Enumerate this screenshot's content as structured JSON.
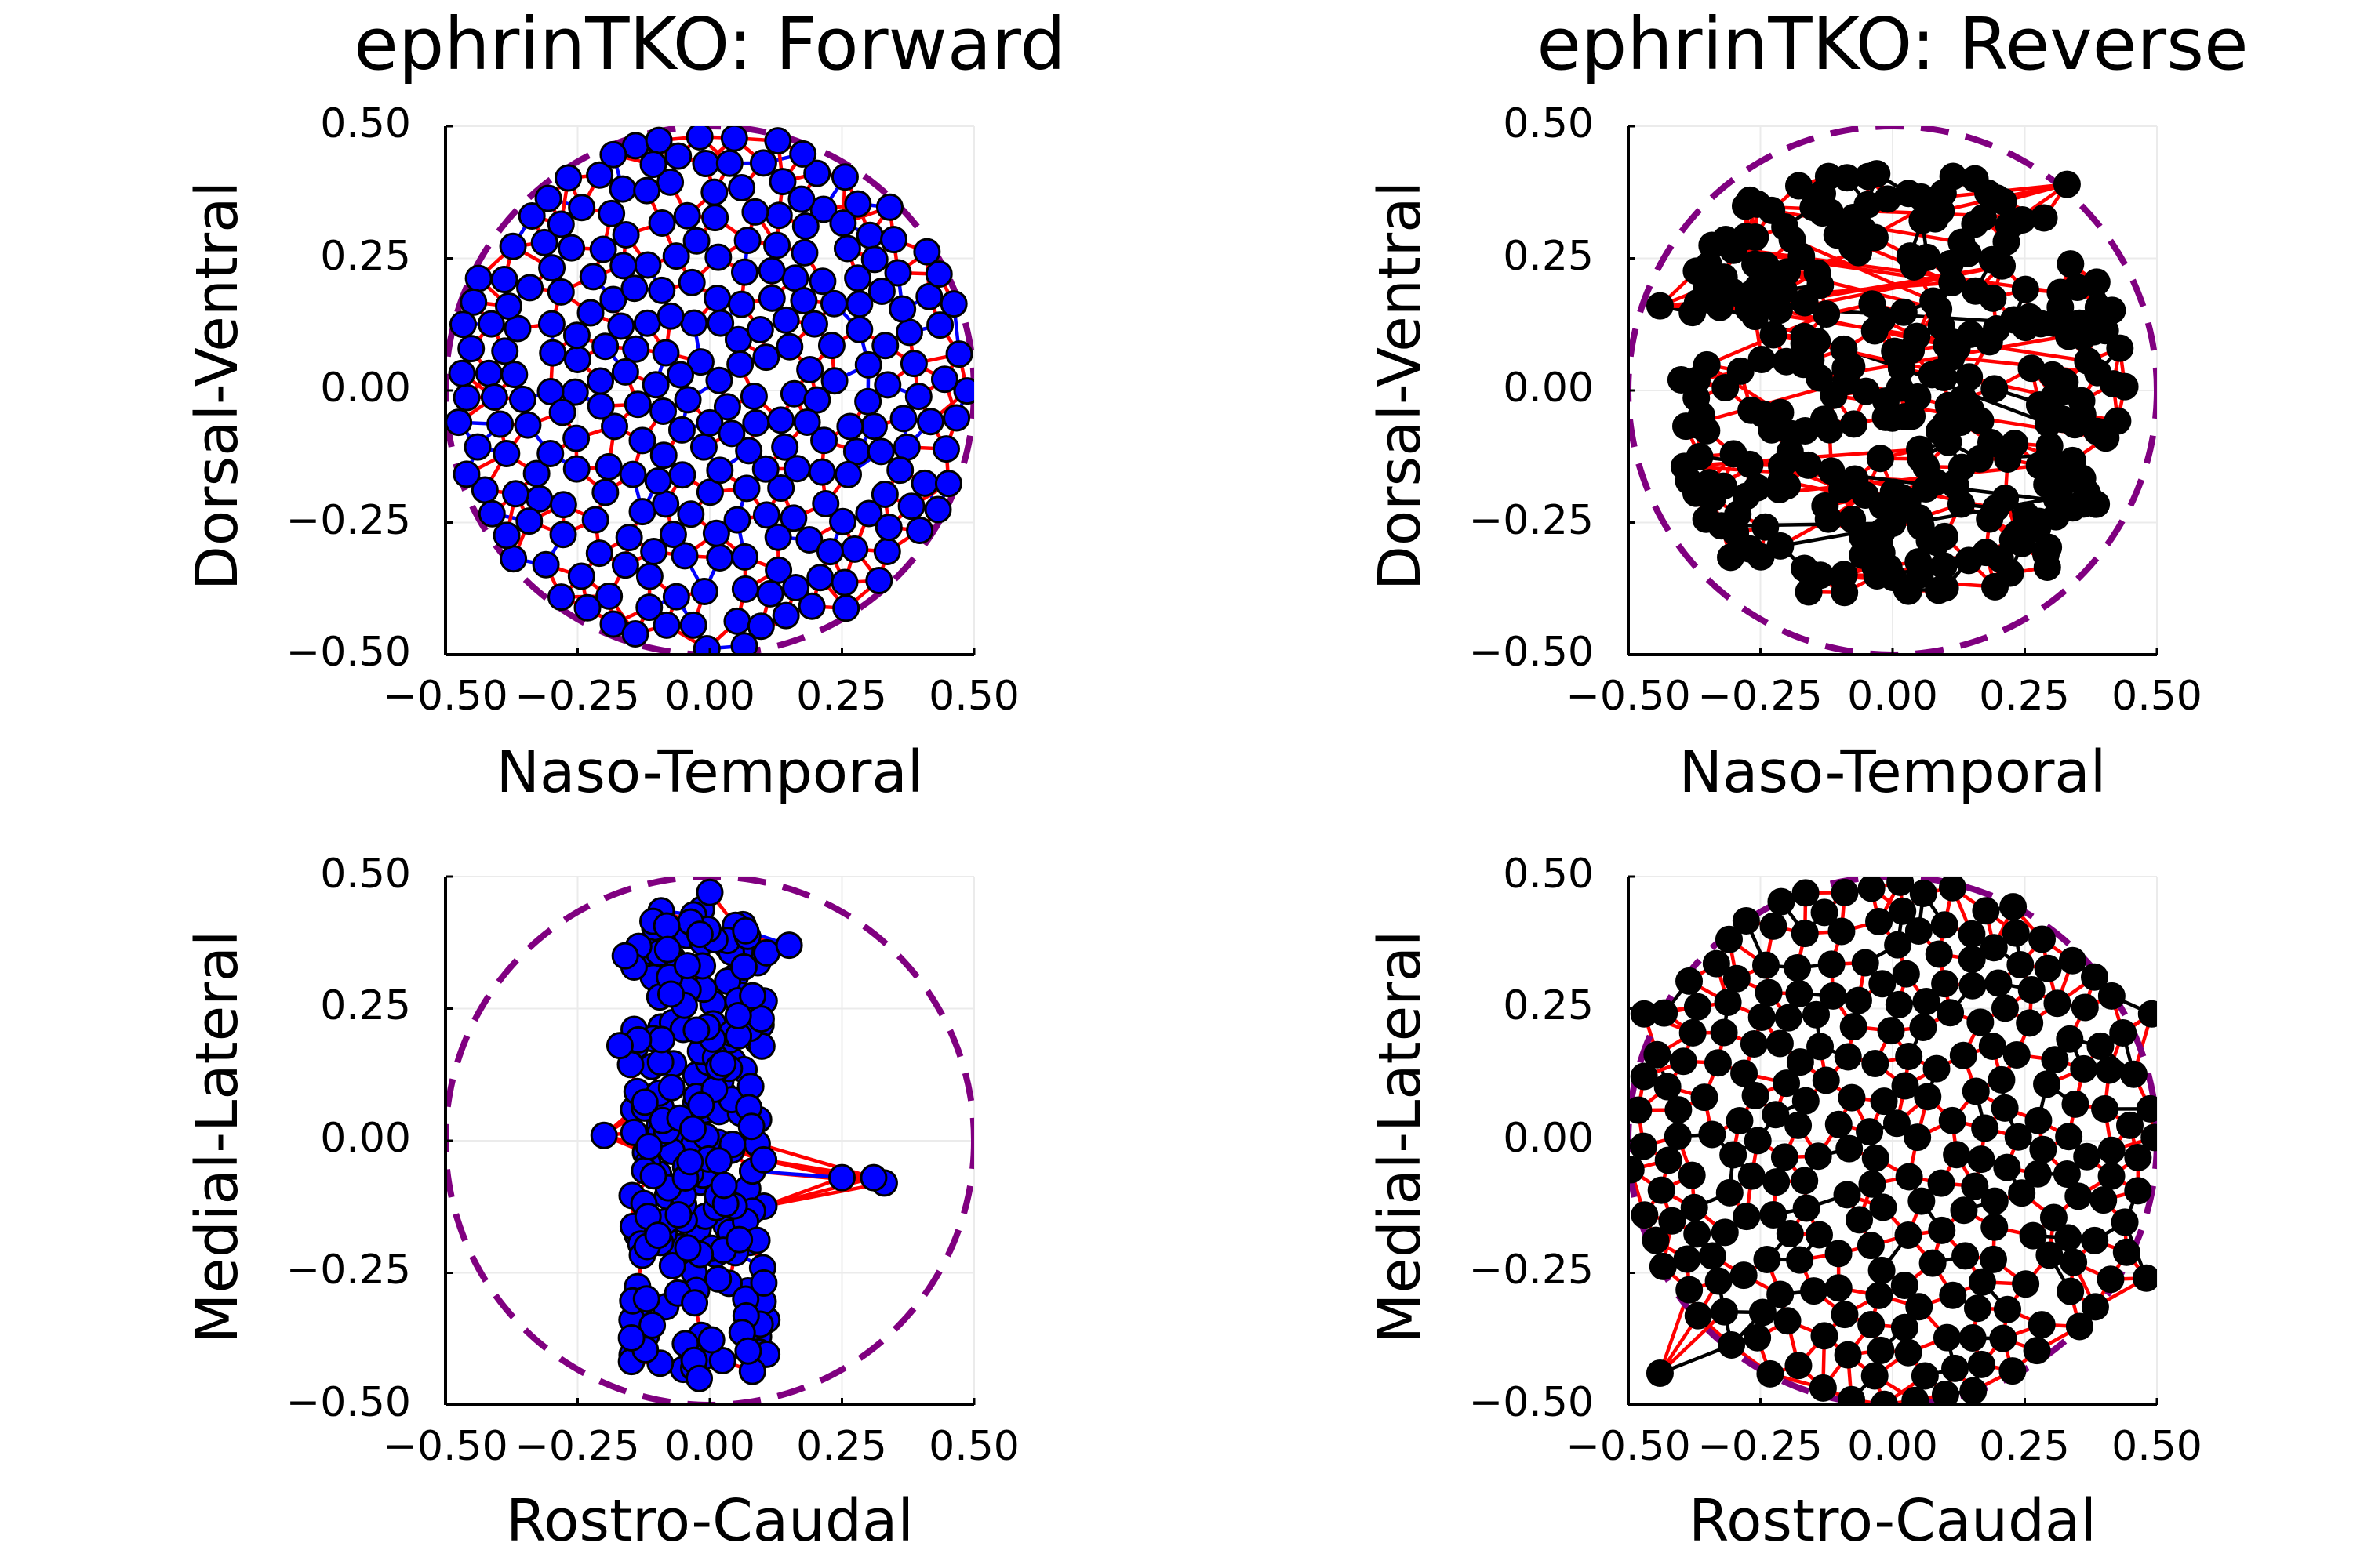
{
  "figure": {
    "background": "#ffffff"
  },
  "colors": {
    "forward_points": "#0000ff",
    "reverse_points": "#000000",
    "link_primary": "#ff0000",
    "boundary_circle": "#800080",
    "grid": "#ebebeb"
  },
  "chart_data": [
    {
      "id": "forward-top",
      "type": "scatter",
      "title": "ephrinTKO: Forward",
      "xlabel": "Naso-Temporal",
      "ylabel": "Dorsal-Ventral",
      "xlim": [
        -0.5,
        0.5
      ],
      "ylim": [
        -0.5,
        0.5
      ],
      "xticks": [
        "−0.50",
        "−0.25",
        "0.00",
        "0.25",
        "0.50"
      ],
      "yticks": [
        "−0.50",
        "−0.25",
        "0.00",
        "0.25",
        "0.50"
      ],
      "tick_values": [
        -0.5,
        -0.25,
        0,
        0.25,
        0.5
      ],
      "grid": true,
      "legend": "none",
      "boundary": {
        "shape": "circle",
        "center": [
          0,
          0
        ],
        "radius": 0.5,
        "style": "dashed"
      },
      "point_color": "#0000ff",
      "point_outline": "#000000",
      "edge_color": "#ff0000",
      "alt_edge_color": "#0000ff",
      "distribution": {
        "kind": "disk",
        "cx": 0,
        "cy": 0,
        "rx": 0.49,
        "ry": 0.49,
        "n": 290,
        "seed": 11,
        "spacing": 0.045
      },
      "extra_points": []
    },
    {
      "id": "reverse-top",
      "type": "scatter",
      "title": "ephrinTKO: Reverse",
      "xlabel": "Naso-Temporal",
      "ylabel": "Dorsal-Ventral",
      "xlim": [
        -0.5,
        0.5
      ],
      "ylim": [
        -0.5,
        0.5
      ],
      "xticks": [
        "−0.50",
        "−0.25",
        "0.00",
        "0.25",
        "0.50"
      ],
      "yticks": [
        "−0.50",
        "−0.25",
        "0.00",
        "0.25",
        "0.50"
      ],
      "tick_values": [
        -0.5,
        -0.25,
        0,
        0.25,
        0.5
      ],
      "grid": true,
      "legend": "none",
      "boundary": {
        "shape": "circle",
        "center": [
          0,
          0
        ],
        "radius": 0.5,
        "style": "dashed"
      },
      "point_color": "#000000",
      "point_outline": "#000000",
      "edge_color": "#ff0000",
      "alt_edge_color": "#000000",
      "distribution": {
        "kind": "box",
        "cx": 0.02,
        "cy": 0.01,
        "rx": 0.42,
        "ry": 0.4,
        "n": 300,
        "seed": 23,
        "spacing": 0.012
      },
      "extra_points": [
        [
          -0.44,
          0.16
        ],
        [
          -0.27,
          0.36
        ],
        [
          -0.26,
          0.29
        ],
        [
          -0.4,
          0.02
        ],
        [
          -0.27,
          -0.14
        ],
        [
          -0.27,
          -0.3
        ],
        [
          0.29,
          -0.31
        ],
        [
          0.43,
          0.08
        ],
        [
          0.37,
          -0.2
        ],
        [
          0.33,
          0.39
        ],
        [
          -0.03,
          0.41
        ],
        [
          0.03,
          -0.38
        ]
      ]
    },
    {
      "id": "forward-bottom",
      "type": "scatter",
      "title": "",
      "xlabel": "Rostro-Caudal",
      "ylabel": "Medial-Lateral",
      "xlim": [
        -0.5,
        0.5
      ],
      "ylim": [
        -0.5,
        0.5
      ],
      "xticks": [
        "−0.50",
        "−0.25",
        "0.00",
        "0.25",
        "0.50"
      ],
      "yticks": [
        "−0.50",
        "−0.25",
        "0.00",
        "0.25",
        "0.50"
      ],
      "tick_values": [
        -0.5,
        -0.25,
        0,
        0.25,
        0.5
      ],
      "grid": true,
      "legend": "none",
      "boundary": {
        "shape": "circle",
        "center": [
          0,
          0
        ],
        "radius": 0.5,
        "style": "dashed"
      },
      "point_color": "#0000ff",
      "point_outline": "#000000",
      "edge_color": "#ff0000",
      "alt_edge_color": "#0000ff",
      "distribution": {
        "kind": "box",
        "cx": -0.02,
        "cy": 0.0,
        "rx": 0.13,
        "ry": 0.44,
        "n": 230,
        "seed": 37,
        "spacing": 0.01
      },
      "extra_points": [
        [
          0.33,
          -0.08
        ],
        [
          0.31,
          -0.07
        ],
        [
          0.25,
          -0.07
        ],
        [
          0.15,
          0.37
        ],
        [
          -0.2,
          0.01
        ],
        [
          -0.17,
          0.18
        ],
        [
          -0.16,
          0.35
        ],
        [
          0.0,
          0.47
        ],
        [
          -0.02,
          -0.45
        ]
      ]
    },
    {
      "id": "reverse-bottom",
      "type": "scatter",
      "title": "",
      "xlabel": "Rostro-Caudal",
      "ylabel": "Medial-Lateral",
      "xlim": [
        -0.5,
        0.5
      ],
      "ylim": [
        -0.5,
        0.5
      ],
      "xticks": [
        "−0.50",
        "−0.25",
        "0.00",
        "0.25",
        "0.50"
      ],
      "yticks": [
        "−0.50",
        "−0.25",
        "0.00",
        "0.25",
        "0.50"
      ],
      "tick_values": [
        -0.5,
        -0.25,
        0,
        0.25,
        0.5
      ],
      "grid": true,
      "legend": "none",
      "boundary": {
        "shape": "circle",
        "center": [
          0,
          0
        ],
        "radius": 0.5,
        "style": "dashed"
      },
      "point_color": "#000000",
      "point_outline": "#000000",
      "edge_color": "#ff0000",
      "alt_edge_color": "#000000",
      "distribution": {
        "kind": "disk",
        "cx": 0,
        "cy": 0,
        "rx": 0.5,
        "ry": 0.5,
        "n": 290,
        "seed": 53,
        "spacing": 0.047
      },
      "extra_points": [
        [
          -0.47,
          0.24
        ],
        [
          0.49,
          0.24
        ],
        [
          -0.44,
          -0.44
        ],
        [
          0.48,
          -0.26
        ]
      ]
    }
  ]
}
